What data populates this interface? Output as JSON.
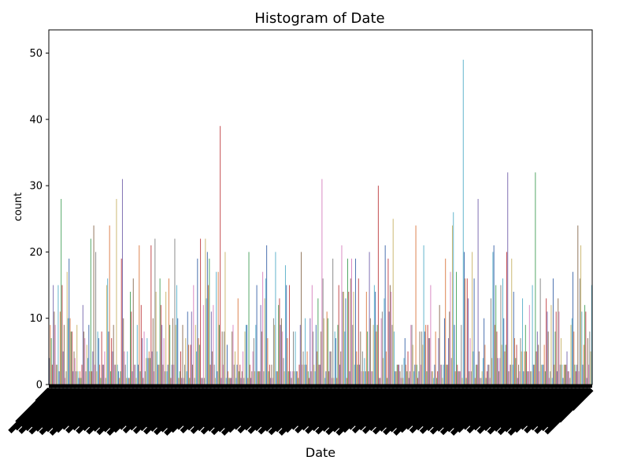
{
  "chart_data": {
    "type": "bar",
    "title": "Histogram of Date",
    "xlabel": "Date",
    "ylabel": "count",
    "ylim": [
      0,
      53.5
    ],
    "yticks": [
      0,
      10,
      20,
      30,
      40,
      50
    ],
    "grid": false,
    "legend": "none",
    "x_tick_labels_note": "category labels rotated ~45°, overlapping and unreadable",
    "palette": [
      "#4c72b0",
      "#dd8452",
      "#55a868",
      "#c44e52",
      "#8172b3",
      "#937860",
      "#da8bc3",
      "#8c8c8c",
      "#ccb974",
      "#64b5cd"
    ],
    "bar_count": 550,
    "peaks": [
      {
        "position": 0.022,
        "value": 28
      },
      {
        "position": 0.036,
        "value": 19
      },
      {
        "position": 0.076,
        "value": 22
      },
      {
        "position": 0.082,
        "value": 24
      },
      {
        "position": 0.086,
        "value": 20
      },
      {
        "position": 0.112,
        "value": 24
      },
      {
        "position": 0.124,
        "value": 28
      },
      {
        "position": 0.134,
        "value": 31
      },
      {
        "position": 0.165,
        "value": 21
      },
      {
        "position": 0.195,
        "value": 22
      },
      {
        "position": 0.232,
        "value": 22
      },
      {
        "position": 0.278,
        "value": 22
      },
      {
        "position": 0.287,
        "value": 22
      },
      {
        "position": 0.315,
        "value": 39
      },
      {
        "position": 0.325,
        "value": 20
      },
      {
        "position": 0.4,
        "value": 21
      },
      {
        "position": 0.418,
        "value": 20
      },
      {
        "position": 0.465,
        "value": 20
      },
      {
        "position": 0.503,
        "value": 31
      },
      {
        "position": 0.558,
        "value": 19
      },
      {
        "position": 0.607,
        "value": 30
      },
      {
        "position": 0.619,
        "value": 21
      },
      {
        "position": 0.634,
        "value": 25
      },
      {
        "position": 0.675,
        "value": 24
      },
      {
        "position": 0.69,
        "value": 21
      },
      {
        "position": 0.73,
        "value": 19
      },
      {
        "position": 0.744,
        "value": 24
      },
      {
        "position": 0.745,
        "value": 26
      },
      {
        "position": 0.764,
        "value": 49
      },
      {
        "position": 0.78,
        "value": 20
      },
      {
        "position": 0.791,
        "value": 28
      },
      {
        "position": 0.845,
        "value": 32
      },
      {
        "position": 0.897,
        "value": 32
      },
      {
        "position": 0.966,
        "value": 17
      },
      {
        "position": 0.975,
        "value": 24
      }
    ]
  }
}
